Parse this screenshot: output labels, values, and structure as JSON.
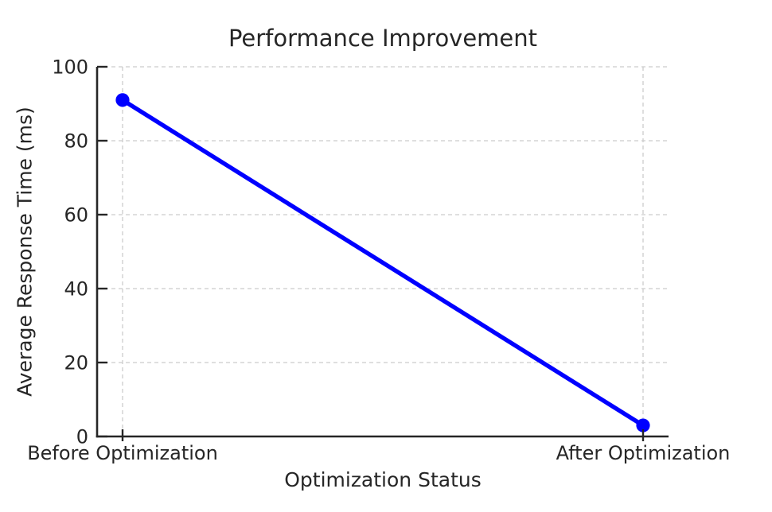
{
  "chart_data": {
    "type": "line",
    "title": "Performance Improvement",
    "xlabel": "Optimization Status",
    "ylabel": "Average Response Time (ms)",
    "categories": [
      "Before Optimization",
      "After Optimization"
    ],
    "values": [
      91,
      3
    ],
    "ylim": [
      0,
      100
    ],
    "yticks": [
      0,
      20,
      40,
      60,
      80,
      100
    ],
    "grid": true,
    "grid_style": "dashed",
    "legend": "none",
    "colors": {
      "line": "#0000ff",
      "marker": "#0000ff",
      "grid": "#cccccc",
      "axis": "#262626",
      "text": "#262626",
      "background": "#ffffff"
    }
  }
}
